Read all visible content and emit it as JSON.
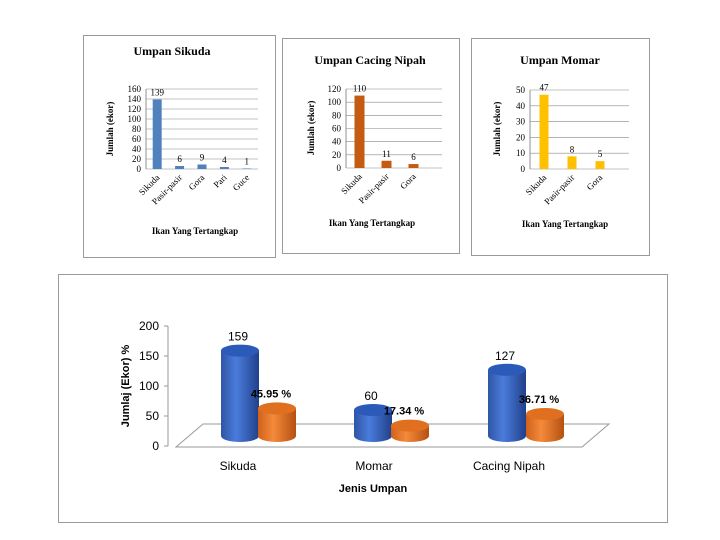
{
  "chart_data": [
    {
      "type": "bar",
      "title": "Umpan Sikuda",
      "xlabel": "Ikan Yang Tertangkap",
      "ylabel": "Jumlah (ekor)",
      "categories": [
        "Sikuda",
        "Pasir-pasir",
        "Gora",
        "Pari",
        "Guce"
      ],
      "values": [
        139,
        6,
        9,
        4,
        1
      ],
      "ylim": [
        0,
        160
      ],
      "yticks": [
        0,
        20,
        40,
        60,
        80,
        100,
        120,
        140,
        160
      ],
      "color": "#4f81bd",
      "grid": true
    },
    {
      "type": "bar",
      "title": "Umpan Cacing Nipah",
      "xlabel": "Ikan Yang Tertangkap",
      "ylabel": "Jumlah (ekor)",
      "categories": [
        "Sikuda",
        "Pasir-pasir",
        "Gora"
      ],
      "values": [
        110,
        11,
        6
      ],
      "ylim": [
        0,
        120
      ],
      "yticks": [
        0,
        20,
        40,
        60,
        80,
        100,
        120
      ],
      "color": "#c55a11",
      "grid": true
    },
    {
      "type": "bar",
      "title": "Umpan Momar",
      "xlabel": "Ikan Yang Tertangkap",
      "ylabel": "Jumlah (ekor)",
      "categories": [
        "Sikuda",
        "Pasir-pasir",
        "Gora"
      ],
      "values": [
        47,
        8,
        5
      ],
      "ylim": [
        0,
        50
      ],
      "yticks": [
        0,
        10,
        20,
        30,
        40,
        50
      ],
      "color": "#ffc000",
      "grid": true
    },
    {
      "type": "bar",
      "title": "",
      "xlabel": "Jenis Umpan",
      "ylabel": "Jumlaj (Ekor) %",
      "categories": [
        "Sikuda",
        "Momar",
        "Cacing Nipah"
      ],
      "ylim": [
        0,
        200
      ],
      "yticks": [
        0,
        50,
        100,
        150,
        200
      ],
      "series": [
        {
          "values": [
            159,
            60,
            127
          ],
          "labels": [
            "159",
            "60",
            "127"
          ],
          "color": "#4472c4"
        },
        {
          "values": [
            45.95,
            17.34,
            36.71
          ],
          "labels": [
            "45.95 %",
            "17.34 %",
            "36.71 %"
          ],
          "color": "#ed7d31"
        }
      ],
      "grid": false
    }
  ]
}
